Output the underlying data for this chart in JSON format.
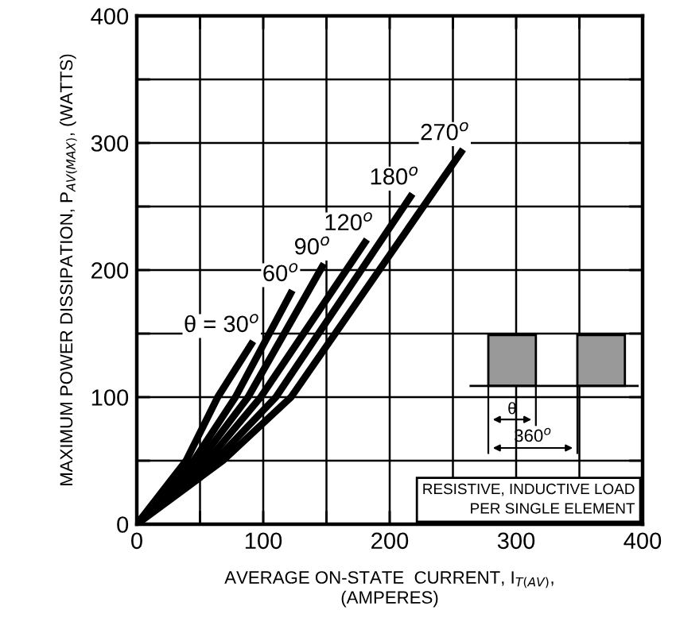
{
  "chart_data": {
    "type": "line",
    "xlabel": "AVERAGE ON-STATE  CURRENT, I$_{T(AV)}$,\n(AMPERES)",
    "ylabel": "MAXIMUM POWER DISSIPATION, P$_{AV(MAX)}$, (WATTS)",
    "xlim": [
      0,
      400
    ],
    "ylim": [
      0,
      400
    ],
    "xticks": [
      0,
      {
        "value": 50,
        "label": null
      },
      100,
      {
        "value": 150,
        "label": null
      },
      200,
      {
        "value": 250,
        "label": null
      },
      300,
      {
        "value": 350,
        "label": null
      },
      400
    ],
    "yticks": [
      0,
      {
        "value": 50,
        "label": null
      },
      100,
      {
        "value": 150,
        "label": null
      },
      200,
      {
        "value": 250,
        "label": null
      },
      300,
      {
        "value": 350,
        "label": null
      },
      400
    ],
    "grid": true,
    "legend": false,
    "marker": "none",
    "line_style": "solid",
    "series": [
      {
        "name": "θ = 30$^{o}$",
        "color": "#000000",
        "x": [
          0,
          39,
          64,
          92
        ],
        "values": [
          0,
          50,
          100,
          144
        ]
      },
      {
        "name": "60$^{o}$",
        "color": "#000000",
        "x": [
          0,
          45,
          78,
          123
        ],
        "values": [
          0,
          50,
          100,
          184
        ]
      },
      {
        "name": "90$^{o}$",
        "color": "#000000",
        "x": [
          0,
          50,
          88,
          148
        ],
        "values": [
          0,
          50,
          100,
          205
        ]
      },
      {
        "name": "120$^{o}$",
        "color": "#000000",
        "x": [
          0,
          56,
          98,
          182
        ],
        "values": [
          0,
          50,
          100,
          224
        ]
      },
      {
        "name": "180$^{o}$",
        "color": "#000000",
        "x": [
          0,
          62,
          110,
          218
        ],
        "values": [
          0,
          50,
          100,
          260
        ]
      },
      {
        "name": "270$^{o}$",
        "color": "#000000",
        "x": [
          0,
          68,
          122,
          258
        ],
        "values": [
          0,
          50,
          100,
          295
        ]
      }
    ],
    "annotations": [
      "RESISTIVE, INDUCTIVE LOAD\nPER SINGLE ELEMENT",
      "θ",
      "360$^{o}$"
    ]
  }
}
